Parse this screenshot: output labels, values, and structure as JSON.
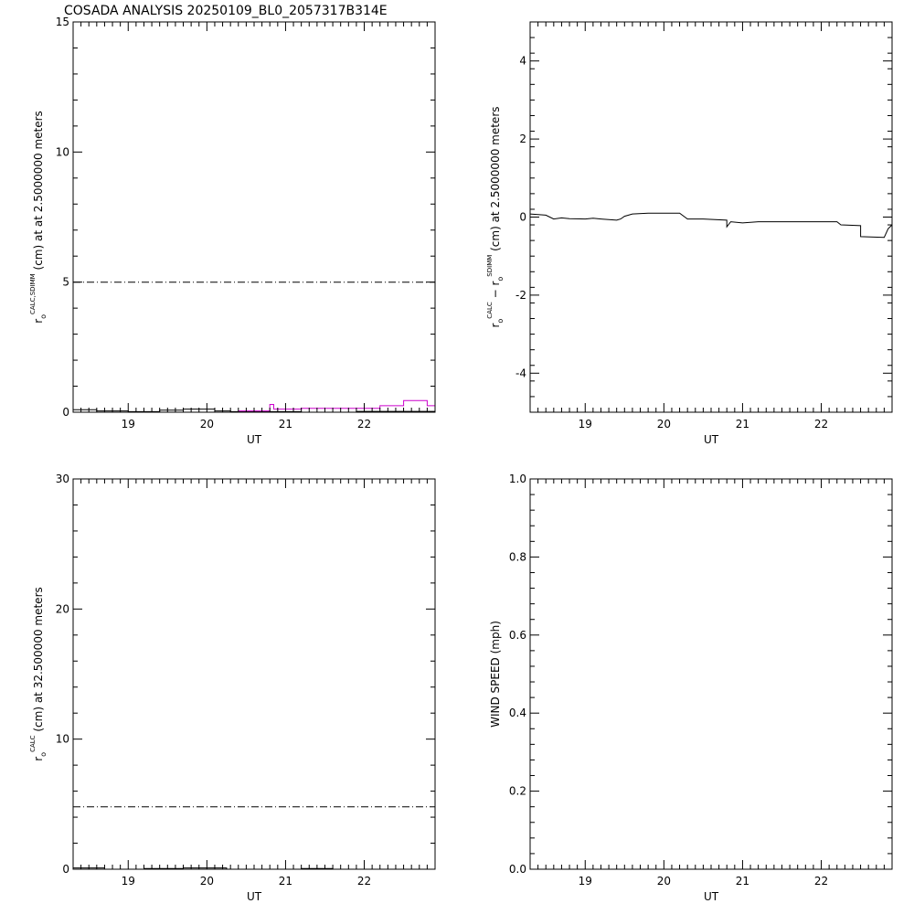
{
  "title": "COSADA ANALYSIS 20250109_BL0_2057317B314E",
  "colors": {
    "axes": "#000000",
    "black_series": "#000000",
    "magenta_series": "#cc00cc"
  },
  "chart_data": [
    {
      "type": "line",
      "panel": "top-left",
      "xlabel": "UT",
      "ylabel": {
        "base": "r",
        "sub": "o",
        "sup": "CALC,SDIMM",
        "rest": " (cm) at  at 2.5000000 meters"
      },
      "xlim": [
        18.3,
        22.9
      ],
      "ylim": [
        0,
        15
      ],
      "xticks": [
        19,
        20,
        21,
        22
      ],
      "yticks": [
        0,
        5,
        10,
        15
      ],
      "grid": false,
      "series": [
        {
          "style": "dash-dot",
          "color": "#000000",
          "x": [
            18.3,
            22.9
          ],
          "y": [
            5.0,
            5.0
          ]
        },
        {
          "style": "solid",
          "color": "#000000",
          "x": [
            18.3,
            18.6,
            18.6,
            19.0,
            19.0,
            19.4,
            19.4,
            19.7,
            19.7,
            20.1,
            20.1,
            20.3,
            20.3,
            21.2,
            21.2,
            21.9,
            21.9,
            22.9
          ],
          "y": [
            0.1,
            0.1,
            0.05,
            0.05,
            0.02,
            0.02,
            0.08,
            0.08,
            0.12,
            0.12,
            0.05,
            0.05,
            0.02,
            0.02,
            0.0,
            0.0,
            0.03,
            0.03
          ]
        },
        {
          "style": "solid",
          "color": "#cc00cc",
          "x": [
            18.3,
            19.3,
            19.3,
            19.6,
            19.6,
            20.4,
            20.4,
            20.8,
            20.8,
            20.85,
            20.85,
            21.2,
            21.2,
            21.8,
            21.8,
            22.2,
            22.2,
            22.5,
            22.5,
            22.8,
            22.8,
            22.9
          ],
          "y": [
            -0.1,
            -0.1,
            -0.05,
            -0.05,
            0.0,
            0.0,
            0.05,
            0.05,
            0.3,
            0.3,
            0.12,
            0.12,
            0.15,
            0.15,
            0.15,
            0.15,
            0.25,
            0.25,
            0.45,
            0.45,
            0.25,
            0.25
          ]
        }
      ]
    },
    {
      "type": "line",
      "panel": "top-right",
      "xlabel": "UT",
      "ylabel": {
        "a_base": "r",
        "a_sub": "o",
        "a_sup": "CALC",
        "mid": " − ",
        "b_base": "r",
        "b_sub": "o",
        "b_sup": "SDIMM",
        "rest": " (cm) at 2.5000000 meters"
      },
      "xlim": [
        18.3,
        22.9
      ],
      "ylim": [
        -5,
        5
      ],
      "xticks": [
        19,
        20,
        21,
        22
      ],
      "yticks": [
        -4,
        -2,
        0,
        2,
        4
      ],
      "grid": false,
      "series": [
        {
          "style": "solid",
          "color": "#000000",
          "x": [
            18.3,
            18.5,
            18.55,
            18.6,
            18.7,
            18.8,
            19.0,
            19.1,
            19.2,
            19.4,
            19.45,
            19.5,
            19.6,
            19.8,
            20.0,
            20.2,
            20.3,
            20.5,
            20.8,
            20.8,
            20.85,
            21.0,
            21.2,
            21.5,
            22.0,
            22.2,
            22.25,
            22.5,
            22.5,
            22.8,
            22.85,
            22.9
          ],
          "y": [
            0.08,
            0.05,
            0.0,
            -0.05,
            -0.02,
            -0.04,
            -0.05,
            -0.03,
            -0.05,
            -0.08,
            -0.05,
            0.02,
            0.08,
            0.1,
            0.1,
            0.1,
            -0.05,
            -0.05,
            -0.08,
            -0.25,
            -0.12,
            -0.15,
            -0.12,
            -0.12,
            -0.12,
            -0.12,
            -0.2,
            -0.22,
            -0.5,
            -0.52,
            -0.3,
            -0.2
          ]
        }
      ]
    },
    {
      "type": "line",
      "panel": "bottom-left",
      "xlabel": "UT",
      "ylabel": {
        "base": "r",
        "sub": "o",
        "sup": "CALC",
        "rest": " (cm) at 32.500000 meters"
      },
      "xlim": [
        18.3,
        22.9
      ],
      "ylim": [
        0,
        30
      ],
      "xticks": [
        19,
        20,
        21,
        22
      ],
      "yticks": [
        0,
        10,
        20,
        30
      ],
      "grid": false,
      "series": [
        {
          "style": "dash-dot",
          "color": "#000000",
          "x": [
            18.3,
            22.9
          ],
          "y": [
            4.8,
            4.8
          ]
        },
        {
          "style": "solid",
          "color": "#000000",
          "x": [
            18.3,
            18.7,
            18.7,
            19.2,
            19.2,
            19.7,
            19.7,
            20.25,
            20.25,
            21.2,
            21.2,
            21.6,
            21.6,
            22.9
          ],
          "y": [
            0.1,
            0.1,
            0.0,
            0.0,
            0.05,
            0.05,
            0.1,
            0.1,
            0.0,
            0.0,
            0.05,
            0.05,
            0.0,
            0.0
          ]
        }
      ]
    },
    {
      "type": "line",
      "panel": "bottom-right",
      "xlabel": "UT",
      "ylabel": {
        "text": "WIND SPEED (mph)"
      },
      "xlim": [
        18.3,
        22.9
      ],
      "ylim": [
        0,
        1
      ],
      "xticks": [
        19,
        20,
        21,
        22
      ],
      "yticks": [
        0.0,
        0.2,
        0.4,
        0.6,
        0.8,
        1.0
      ],
      "ytick_labels": [
        "0.0",
        "0.2",
        "0.4",
        "0.6",
        "0.8",
        "1.0"
      ],
      "grid": false,
      "series": []
    }
  ]
}
